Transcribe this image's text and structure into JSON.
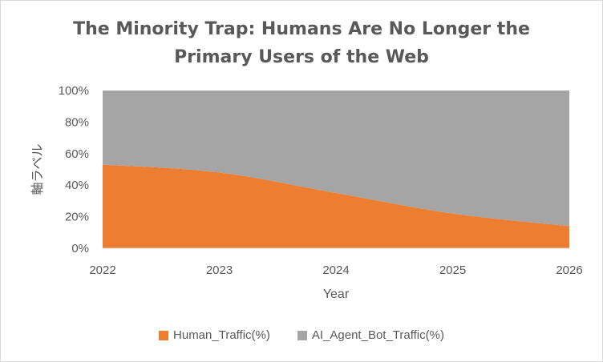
{
  "chart_data": {
    "type": "area",
    "stacked": "percent",
    "title_line1": "The Minority Trap: Humans Are No Longer the",
    "title_line2": "Primary Users of the Web",
    "xlabel": "Year",
    "ylabel": "軸ラベル",
    "x": [
      "2022",
      "2023",
      "2024",
      "2025",
      "2026"
    ],
    "ylim": [
      0,
      100
    ],
    "yticks": [
      "0%",
      "20%",
      "40%",
      "60%",
      "80%",
      "100%"
    ],
    "series": [
      {
        "name": "Human_Traffic(%)",
        "color": "#ed7d31",
        "values": [
          53,
          48,
          35,
          22,
          14
        ]
      },
      {
        "name": "AI_Agent_Bot_Traffic(%)",
        "color": "#a5a5a5",
        "values": [
          47,
          52,
          65,
          78,
          86
        ]
      }
    ],
    "legend_position": "bottom",
    "grid": false
  }
}
